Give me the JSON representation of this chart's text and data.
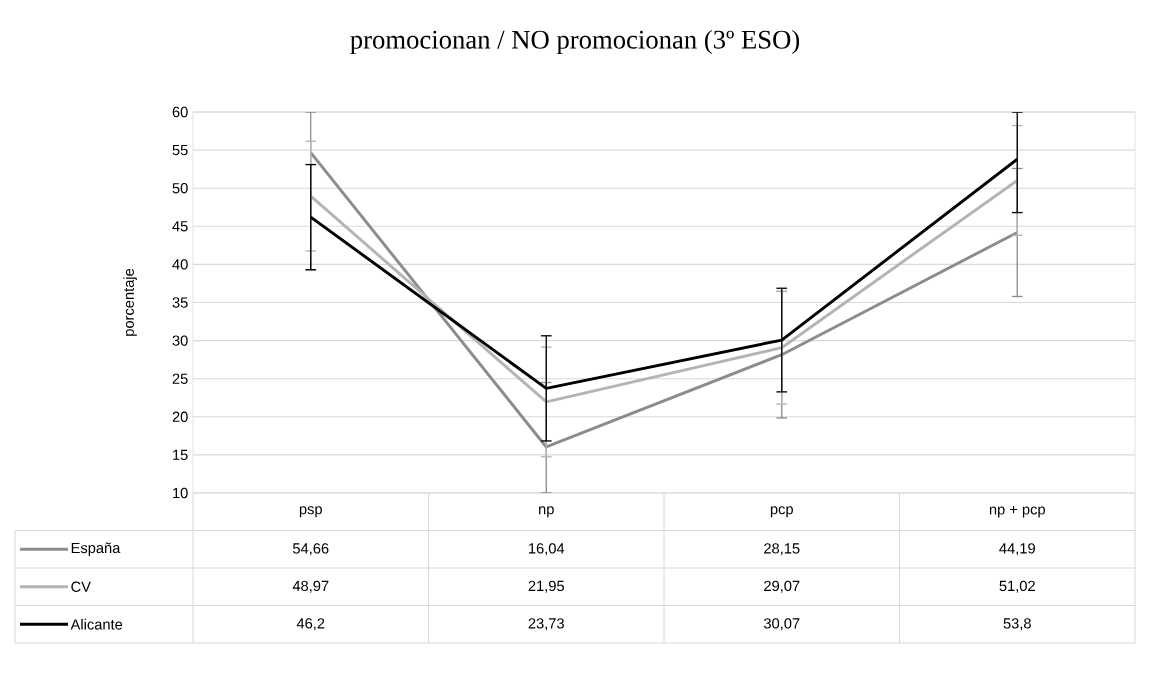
{
  "chart_data": {
    "type": "line",
    "title": "promocionan / NO promocionan (3º ESO)",
    "ylabel": "porcentaje",
    "categories": [
      "psp",
      "np",
      "pcp",
      "np + pcp"
    ],
    "series": [
      {
        "name": "España",
        "color": "#8c8c8c",
        "values": [
          54.66,
          16.04,
          28.15,
          44.19
        ],
        "value_labels": [
          "54,66",
          "16,04",
          "28,15",
          "44,19"
        ],
        "errors": [
          [
            39.3,
            60
          ],
          [
            10,
            24.5
          ],
          8.3,
          8.4
        ]
      },
      {
        "name": "CV",
        "color": "#b4b4b4",
        "values": [
          48.97,
          21.95,
          29.07,
          51.02
        ],
        "value_labels": [
          "48,97",
          "21,95",
          "29,07",
          "51,02"
        ],
        "errors": [
          7.2,
          7.2,
          7.4,
          7.2
        ]
      },
      {
        "name": "Alicante",
        "color": "#000000",
        "values": [
          46.2,
          23.73,
          30.07,
          53.8
        ],
        "value_labels": [
          "46,2",
          "23,73",
          "30,07",
          "53,8"
        ],
        "errors": [
          6.9,
          6.9,
          6.8,
          [
            46.8,
            60
          ]
        ]
      }
    ],
    "ylim": [
      10,
      60
    ],
    "yticks": [
      10,
      15,
      20,
      25,
      30,
      35,
      40,
      45,
      50,
      55,
      60
    ],
    "grid": "y",
    "legend": "bottom",
    "marker": "none",
    "line_style": "solid"
  }
}
